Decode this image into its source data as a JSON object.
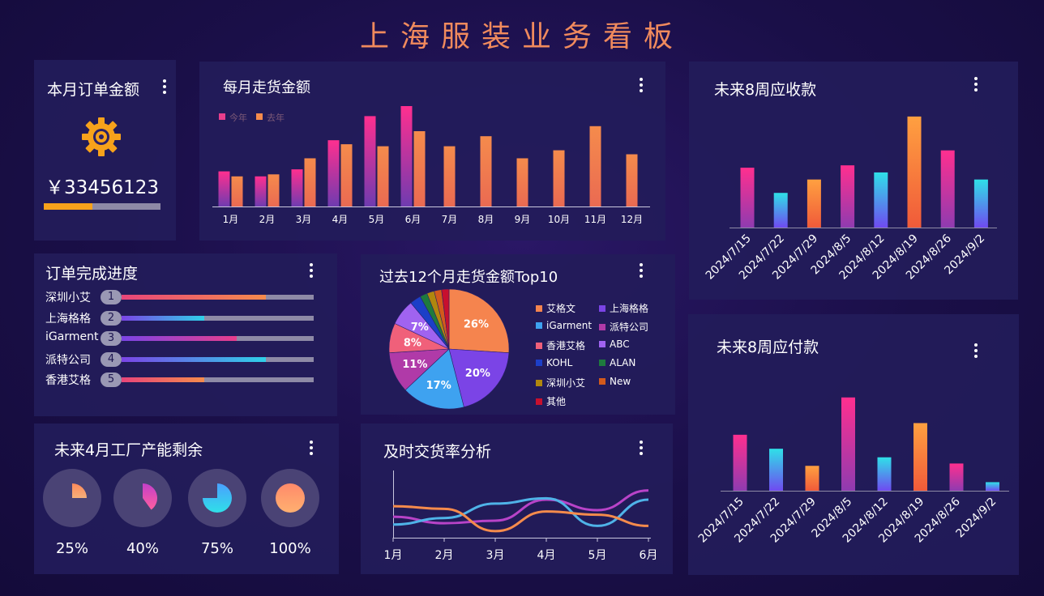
{
  "page": {
    "title": "上海服装业务看板"
  },
  "order_amount": {
    "title": "本月订单金额",
    "amount": "￥33456123",
    "progress": 0.42,
    "colors": {
      "fill": "#f7a21b",
      "track": "#8e8aa6"
    }
  },
  "monthly_shipment": {
    "title": "每月走货金额"
  },
  "order_progress": {
    "title": "订单完成进度",
    "items": [
      {
        "name": "深圳小艾",
        "rank": "1",
        "progress": 0.75
      },
      {
        "name": "上海格格",
        "rank": "2",
        "progress": 0.43
      },
      {
        "name": "iGarment",
        "rank": "3",
        "progress": 0.6
      },
      {
        "name": "派特公司",
        "rank": "4",
        "progress": 0.75
      },
      {
        "name": "香港艾格",
        "rank": "5",
        "progress": 0.43
      }
    ]
  },
  "capacity": {
    "title": "未来4月工厂产能剩余",
    "items": [
      {
        "label": "25%",
        "value": 0.25
      },
      {
        "label": "40%",
        "value": 0.4
      },
      {
        "label": "75%",
        "value": 0.75
      },
      {
        "label": "100%",
        "value": 1.0
      }
    ]
  },
  "top10": {
    "title": "过去12个月走货金额Top10"
  },
  "ontime": {
    "title": "及时交货率分析"
  },
  "receivable": {
    "title": "未来8周应收款"
  },
  "payable": {
    "title": "未来8周应付款"
  },
  "chart_data": [
    {
      "id": "monthly_shipment",
      "type": "bar",
      "categories": [
        "1月",
        "2月",
        "3月",
        "4月",
        "5月",
        "6月",
        "7月",
        "8月",
        "9月",
        "10月",
        "11月",
        "12月"
      ],
      "series": [
        {
          "name": "今年",
          "values": [
            35,
            30,
            37,
            66,
            90,
            100,
            null,
            null,
            null,
            null,
            null,
            null
          ],
          "color": "#e83e8c"
        },
        {
          "name": "去年",
          "values": [
            30,
            32,
            48,
            62,
            60,
            75,
            60,
            70,
            48,
            56,
            80,
            52
          ],
          "color": "#f58b4c"
        }
      ],
      "ylim": [
        0,
        100
      ],
      "legend": "top-left"
    },
    {
      "id": "top10",
      "type": "pie",
      "labels": [
        "艾格文",
        "上海格格",
        "iGarment",
        "派特公司",
        "香港艾格",
        "ABC",
        "KOHL",
        "ALAN",
        "深圳小艾",
        "New",
        "其他"
      ],
      "values": [
        26,
        20,
        17,
        11,
        8,
        7,
        3,
        2,
        2,
        2,
        2
      ],
      "data_labels": [
        "26%",
        "20%",
        "17%",
        "11%",
        "8%",
        "7%",
        "",
        "",
        "",
        "",
        ""
      ],
      "colors": [
        "#f5844e",
        "#7b44e6",
        "#3ea2f0",
        "#b03aa8",
        "#f0607a",
        "#a063f0",
        "#1c3fc8",
        "#1e7a3e",
        "#b0870e",
        "#d35a1c",
        "#c8102e"
      ],
      "legend": "right"
    },
    {
      "id": "ontime",
      "type": "line",
      "categories": [
        "1月",
        "2月",
        "3月",
        "4月",
        "5月",
        "6月"
      ],
      "series": [
        {
          "values": [
            0.32,
            0.22,
            0.26,
            0.58,
            0.42,
            0.72
          ],
          "color": "#b843c8"
        },
        {
          "values": [
            0.2,
            0.3,
            0.52,
            0.6,
            0.18,
            0.58
          ],
          "color": "#4fb3e8"
        },
        {
          "values": [
            0.48,
            0.44,
            0.1,
            0.4,
            0.35,
            0.18
          ],
          "color": "#f58b4c"
        }
      ],
      "ylim": [
        0,
        1
      ]
    },
    {
      "id": "receivable",
      "type": "bar",
      "categories": [
        "2024/7/15",
        "2024/7/22",
        "2024/7/29",
        "2024/8/5",
        "2024/8/12",
        "2024/8/19",
        "2024/8/26",
        "2024/9/2"
      ],
      "values": [
        76,
        44,
        61,
        79,
        70,
        141,
        98,
        61
      ],
      "ylim": [
        0,
        145
      ]
    },
    {
      "id": "payable",
      "type": "bar",
      "categories": [
        "2024/7/15",
        "2024/7/22",
        "2024/7/29",
        "2024/8/5",
        "2024/8/12",
        "2024/8/19",
        "2024/8/26",
        "2024/9/2"
      ],
      "values": [
        72,
        54,
        32,
        120,
        43,
        87,
        35,
        11
      ],
      "ylim": [
        0,
        125
      ]
    }
  ]
}
